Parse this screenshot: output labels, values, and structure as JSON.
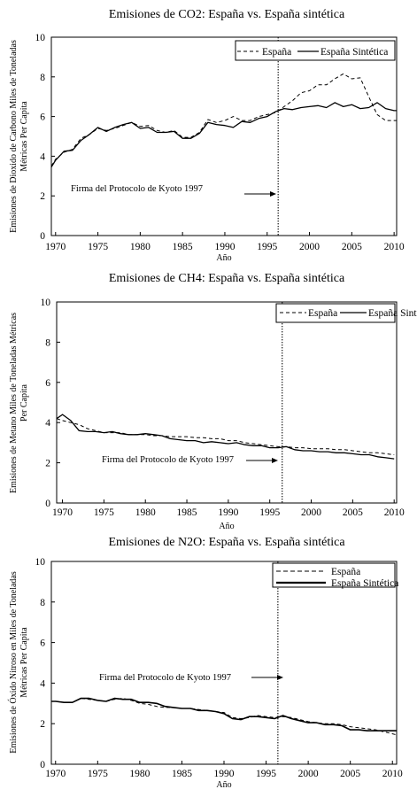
{
  "chart_data": [
    {
      "type": "line",
      "title": "Emisiones de CO2: España vs. España sintética",
      "ylabel_lines": [
        "Emisiones de Dioxido de Carbono Miles de Toneladas",
        "Métricas Per Capita"
      ],
      "xlabel": "Año",
      "xlim": [
        1969.5,
        2010.3
      ],
      "ylim": [
        0,
        10
      ],
      "x_ticks": [
        1970,
        1975,
        1980,
        1985,
        1990,
        1995,
        2000,
        2005,
        2010
      ],
      "y_ticks": [
        0,
        2,
        4,
        6,
        8,
        10
      ],
      "vline_x": 1996.3,
      "annotation": "Firma del Protocolo de Kyoto 1997",
      "legend": {
        "placement": "top-right",
        "layout": "horizontal"
      },
      "x": [
        1969.5,
        1970,
        1971,
        1972,
        1973,
        1974,
        1975,
        1976,
        1977,
        1978,
        1979,
        1980,
        1981,
        1982,
        1983,
        1984,
        1985,
        1986,
        1987,
        1988,
        1989,
        1990,
        1991,
        1992,
        1993,
        1994,
        1995,
        1996,
        1997,
        1998,
        1999,
        2000,
        2001,
        2002,
        2003,
        2004,
        2005,
        2006,
        2007,
        2008,
        2009,
        2010,
        2010.3
      ],
      "series": [
        {
          "name": "España",
          "style": "dashed",
          "values": [
            3.5,
            3.85,
            4.2,
            4.35,
            4.9,
            5.1,
            5.4,
            5.3,
            5.4,
            5.55,
            5.7,
            5.5,
            5.55,
            5.3,
            5.2,
            5.3,
            4.95,
            4.95,
            5.2,
            5.85,
            5.7,
            5.8,
            6.0,
            5.8,
            5.8,
            6.0,
            6.1,
            6.2,
            6.5,
            6.8,
            7.2,
            7.3,
            7.6,
            7.6,
            7.9,
            8.15,
            7.9,
            7.95,
            7.0,
            6.1,
            5.8,
            5.8,
            5.8
          ]
        },
        {
          "name": "España Sintética",
          "style": "solid",
          "values": [
            3.45,
            3.8,
            4.25,
            4.3,
            4.8,
            5.1,
            5.45,
            5.25,
            5.45,
            5.6,
            5.7,
            5.4,
            5.45,
            5.2,
            5.2,
            5.25,
            4.9,
            4.9,
            5.15,
            5.7,
            5.6,
            5.55,
            5.45,
            5.75,
            5.7,
            5.9,
            6.0,
            6.25,
            6.4,
            6.35,
            6.45,
            6.5,
            6.55,
            6.45,
            6.7,
            6.5,
            6.6,
            6.4,
            6.45,
            6.7,
            6.4,
            6.3,
            6.3
          ]
        }
      ]
    },
    {
      "type": "line",
      "title": "Emisiones de CH4: España vs. España sintética",
      "ylabel_lines": [
        "Emisiones de Metano Miles de Toneladas Métricas",
        "Per Capita"
      ],
      "xlabel": "Año",
      "xlim": [
        1969.3,
        2010.3
      ],
      "ylim": [
        0,
        10
      ],
      "x_ticks": [
        1970,
        1975,
        1980,
        1985,
        1990,
        1995,
        2000,
        2005,
        2010
      ],
      "y_ticks": [
        0,
        2,
        4,
        6,
        8,
        10
      ],
      "vline_x": 1996.5,
      "annotation": "Firma del Protocolo de Kyoto 1997",
      "legend": {
        "placement": "top-right",
        "layout": "horizontal"
      },
      "x": [
        1969.3,
        1970,
        1971,
        1972,
        1973,
        1974,
        1975,
        1976,
        1977,
        1978,
        1979,
        1980,
        1981,
        1982,
        1983,
        1984,
        1985,
        1986,
        1987,
        1988,
        1989,
        1990,
        1991,
        1992,
        1993,
        1994,
        1995,
        1996,
        1997,
        1998,
        1999,
        2000,
        2001,
        2002,
        2003,
        2004,
        2005,
        2006,
        2007,
        2008,
        2009,
        2010
      ],
      "series": [
        {
          "name": "España",
          "style": "dashed",
          "values": [
            4.2,
            4.1,
            4.0,
            3.9,
            3.7,
            3.6,
            3.5,
            3.5,
            3.5,
            3.4,
            3.4,
            3.4,
            3.35,
            3.35,
            3.3,
            3.3,
            3.3,
            3.25,
            3.25,
            3.2,
            3.2,
            3.1,
            3.1,
            3.0,
            2.95,
            2.9,
            2.85,
            2.8,
            2.8,
            2.75,
            2.75,
            2.7,
            2.7,
            2.7,
            2.65,
            2.65,
            2.6,
            2.55,
            2.5,
            2.5,
            2.45,
            2.4
          ]
        },
        {
          "name": "España Sintética",
          "style": "solid",
          "values": [
            4.2,
            4.4,
            4.1,
            3.6,
            3.55,
            3.55,
            3.5,
            3.55,
            3.45,
            3.4,
            3.4,
            3.45,
            3.4,
            3.35,
            3.2,
            3.15,
            3.1,
            3.1,
            3.0,
            3.05,
            3.0,
            2.95,
            3.0,
            2.9,
            2.85,
            2.85,
            2.75,
            2.75,
            2.8,
            2.65,
            2.6,
            2.6,
            2.55,
            2.55,
            2.5,
            2.5,
            2.45,
            2.4,
            2.4,
            2.3,
            2.25,
            2.2
          ]
        }
      ]
    },
    {
      "type": "line",
      "title": "Emisiones de N2O: España vs. España sintética",
      "ylabel_lines": [
        "Emisiones de Óxido Nitroso en Miles de Toneladas",
        "Métricas Per Capita"
      ],
      "xlabel": "Año",
      "xlim": [
        1969.5,
        2010.5
      ],
      "ylim": [
        0,
        10
      ],
      "x_ticks": [
        1970,
        1975,
        1980,
        1985,
        1990,
        1995,
        2000,
        2005,
        2010
      ],
      "y_ticks": [
        0,
        2,
        4,
        6,
        8,
        10
      ],
      "vline_x": 1996.4,
      "annotation": "Firma del Protocolo de Kyoto 1997",
      "legend": {
        "placement": "top-right",
        "layout": "vertical"
      },
      "x": [
        1969.5,
        1970,
        1971,
        1972,
        1973,
        1974,
        1975,
        1976,
        1977,
        1978,
        1979,
        1980,
        1981,
        1982,
        1983,
        1984,
        1985,
        1986,
        1987,
        1988,
        1989,
        1990,
        1991,
        1992,
        1993,
        1994,
        1995,
        1996,
        1997,
        1998,
        1999,
        2000,
        2001,
        2002,
        2003,
        2004,
        2005,
        2006,
        2007,
        2008,
        2009,
        2010,
        2010.5
      ],
      "series": [
        {
          "name": "España",
          "style": "dashed",
          "values": [
            3.1,
            3.1,
            3.05,
            3.05,
            3.25,
            3.2,
            3.15,
            3.1,
            3.2,
            3.25,
            3.15,
            3.0,
            2.95,
            2.85,
            2.8,
            2.8,
            2.75,
            2.75,
            2.7,
            2.65,
            2.6,
            2.55,
            2.3,
            2.25,
            2.3,
            2.4,
            2.35,
            2.3,
            2.35,
            2.3,
            2.2,
            2.1,
            2.05,
            2.0,
            2.0,
            1.95,
            1.85,
            1.8,
            1.75,
            1.7,
            1.6,
            1.5,
            1.45
          ]
        },
        {
          "name": "España Sintética",
          "style": "solid",
          "values": [
            3.1,
            3.1,
            3.05,
            3.05,
            3.25,
            3.25,
            3.15,
            3.1,
            3.25,
            3.2,
            3.2,
            3.05,
            3.05,
            3.0,
            2.85,
            2.8,
            2.75,
            2.75,
            2.65,
            2.65,
            2.6,
            2.5,
            2.25,
            2.2,
            2.35,
            2.35,
            2.3,
            2.25,
            2.4,
            2.25,
            2.15,
            2.05,
            2.05,
            1.95,
            1.95,
            1.9,
            1.7,
            1.7,
            1.65,
            1.65,
            1.65,
            1.65,
            1.65
          ]
        }
      ]
    }
  ]
}
